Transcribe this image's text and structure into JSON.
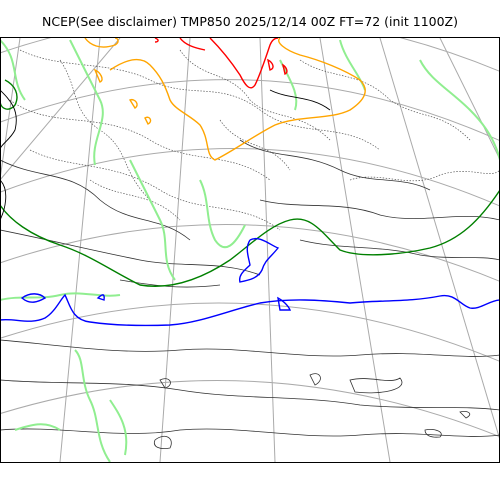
{
  "title": "NCEP(See disclaimer) TMP850 2025/12/14 00Z FT=72 (init 1100Z)",
  "colors": {
    "background": "#ffffff",
    "graticule": "#aaaaaa",
    "coastline": "#000000",
    "contour_minor": "#555555",
    "isotherm_plus_light": "#90ee90",
    "isotherm_plus_dark": "#008000",
    "isotherm_zero": "#0000ff",
    "isotherm_warm": "#ffa500",
    "isotherm_hot": "#ff0000"
  },
  "layers": [
    "graticule",
    "coastline",
    "temperature-contours",
    "isotherm-0C",
    "isotherm-warm",
    "isotherm-hot"
  ]
}
